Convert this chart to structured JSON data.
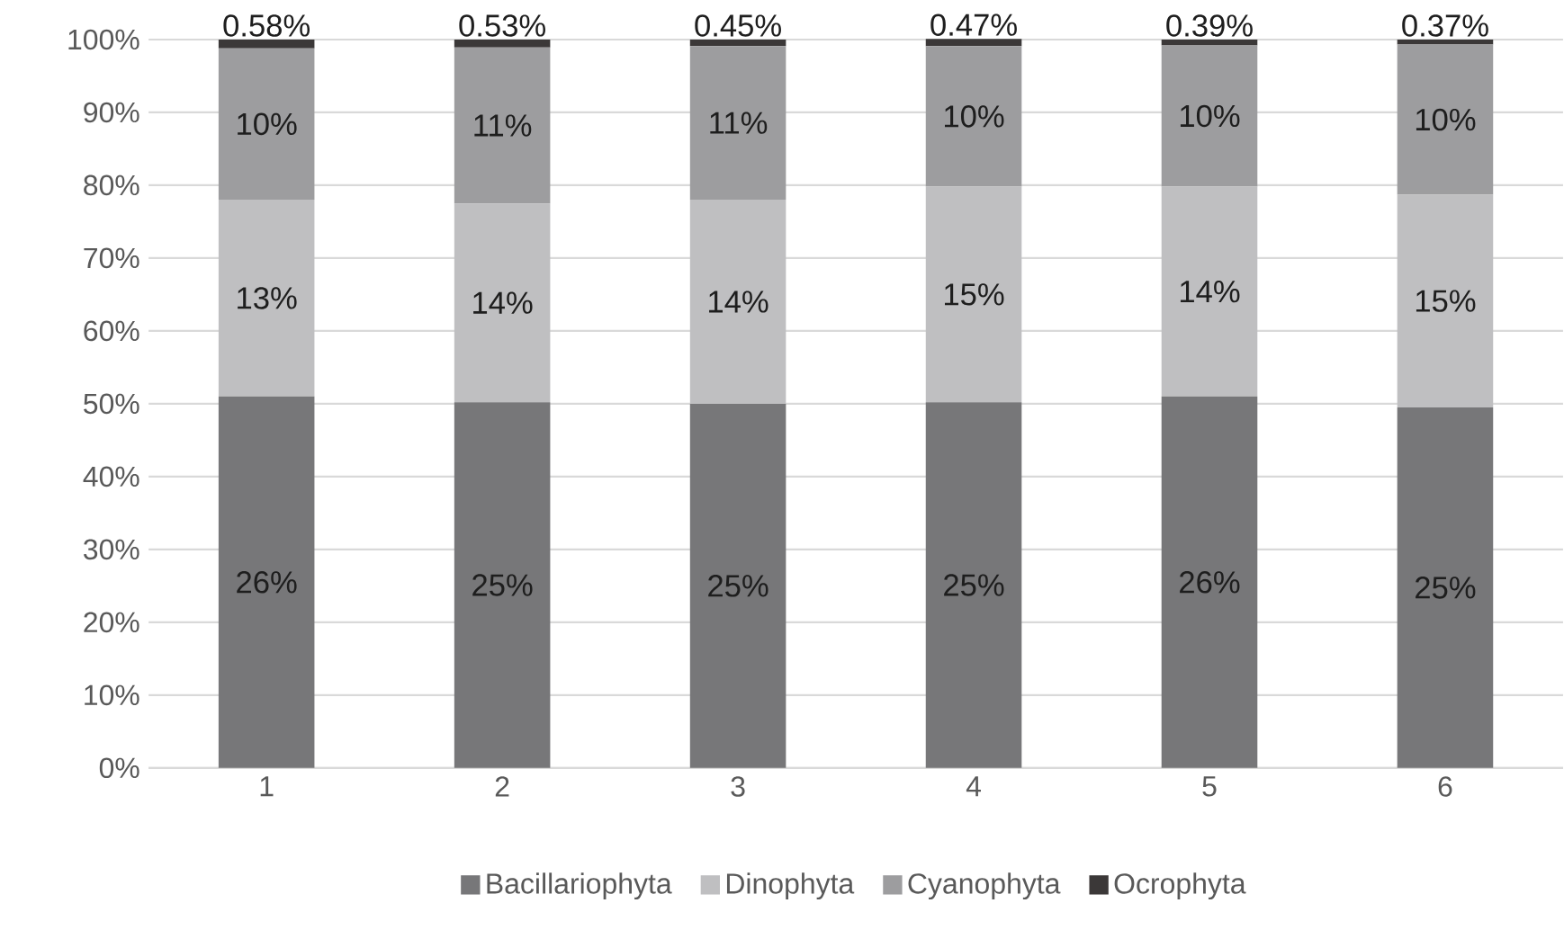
{
  "chart_data": {
    "type": "bar",
    "stacked": true,
    "categories": [
      "1",
      "2",
      "3",
      "4",
      "5",
      "6"
    ],
    "series": [
      {
        "name": "Bacillariophyta",
        "color": "#777779",
        "values": [
          51,
          50.2,
          50,
          50.2,
          51,
          49.5
        ]
      },
      {
        "name": "Dinophyta",
        "color": "#bfbfc1",
        "values": [
          27,
          27.3,
          28,
          29.6,
          28.8,
          29.2
        ]
      },
      {
        "name": "Cyanophyta",
        "color": "#9d9d9f",
        "values": [
          20.8,
          21.4,
          21.1,
          19.3,
          19.4,
          20.6
        ]
      },
      {
        "name": "Ocrophyta",
        "color": "#3b3838",
        "values": [
          1.2,
          1.1,
          0.9,
          1,
          0.8,
          0.7
        ]
      }
    ],
    "annotations": [
      "26%",
      "25%",
      "25%",
      "25%",
      "26%",
      "25%",
      "13%",
      "14%",
      "14%",
      "15%",
      "14%",
      "15%",
      "10%",
      "11%",
      "11%",
      "10%",
      "10%",
      "10%",
      "0.58%",
      "0.53%",
      "0.45%",
      "0.47%",
      "0.39%",
      "0.37%"
    ],
    "ylim": [
      0,
      100
    ],
    "yticks": [
      {
        "value": 0,
        "label": "0%"
      },
      {
        "value": 10,
        "label": "10%"
      },
      {
        "value": 20,
        "label": "20%"
      },
      {
        "value": 30,
        "label": "30%"
      },
      {
        "value": 40,
        "label": "40%"
      },
      {
        "value": 50,
        "label": "50%"
      },
      {
        "value": 60,
        "label": "60%"
      },
      {
        "value": 70,
        "label": "70%"
      },
      {
        "value": 80,
        "label": "80%"
      },
      {
        "value": 90,
        "label": "90%"
      },
      {
        "value": 100,
        "label": "100%"
      }
    ],
    "grid": "y",
    "legend": "bottom"
  }
}
